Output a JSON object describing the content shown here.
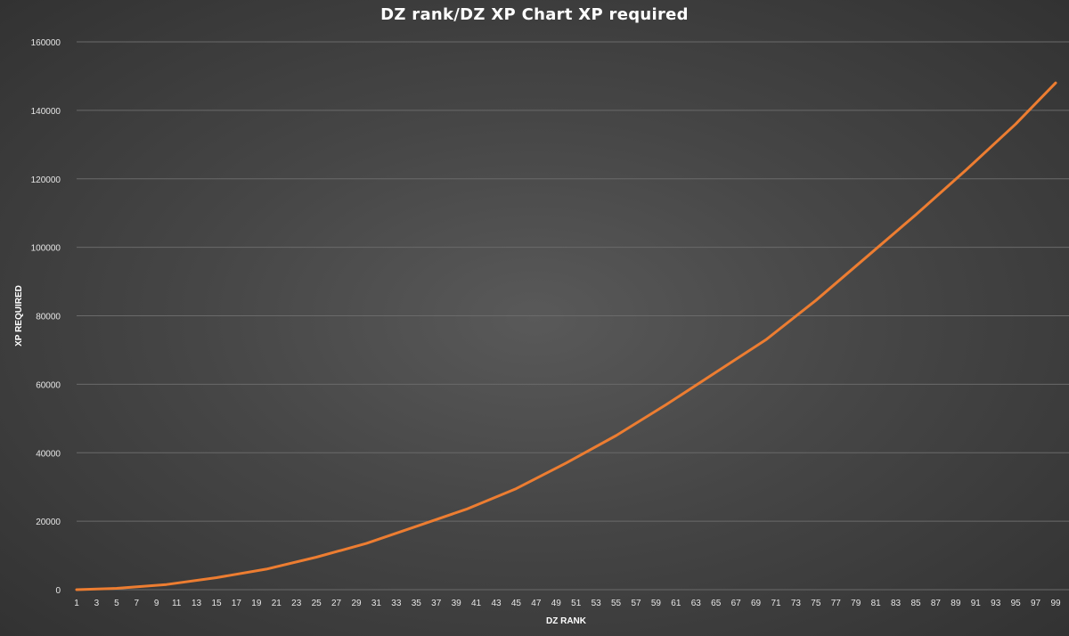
{
  "chart_data": {
    "type": "line",
    "title": "DZ rank/DZ XP Chart XP required",
    "xlabel": "DZ RANK",
    "ylabel": "XP REQUIRED",
    "ylim": [
      0,
      160000
    ],
    "yticks": [
      0,
      20000,
      40000,
      60000,
      80000,
      100000,
      120000,
      140000,
      160000
    ],
    "x_range": [
      1,
      99
    ],
    "grid": true,
    "legend": "none",
    "colors": {
      "line": "#ED7D31",
      "grid": "#6a6a6a"
    },
    "series": [
      {
        "x": [
          1,
          5,
          10,
          15,
          20,
          25,
          30,
          35,
          40,
          45,
          50,
          55,
          60,
          65,
          70,
          75,
          80,
          85,
          90,
          95,
          99
        ],
        "values": [
          0,
          400,
          1500,
          3500,
          6000,
          9500,
          13500,
          18500,
          23500,
          29500,
          37000,
          45000,
          54000,
          63500,
          73000,
          84500,
          97000,
          109500,
          122500,
          136000,
          148000
        ]
      }
    ]
  }
}
